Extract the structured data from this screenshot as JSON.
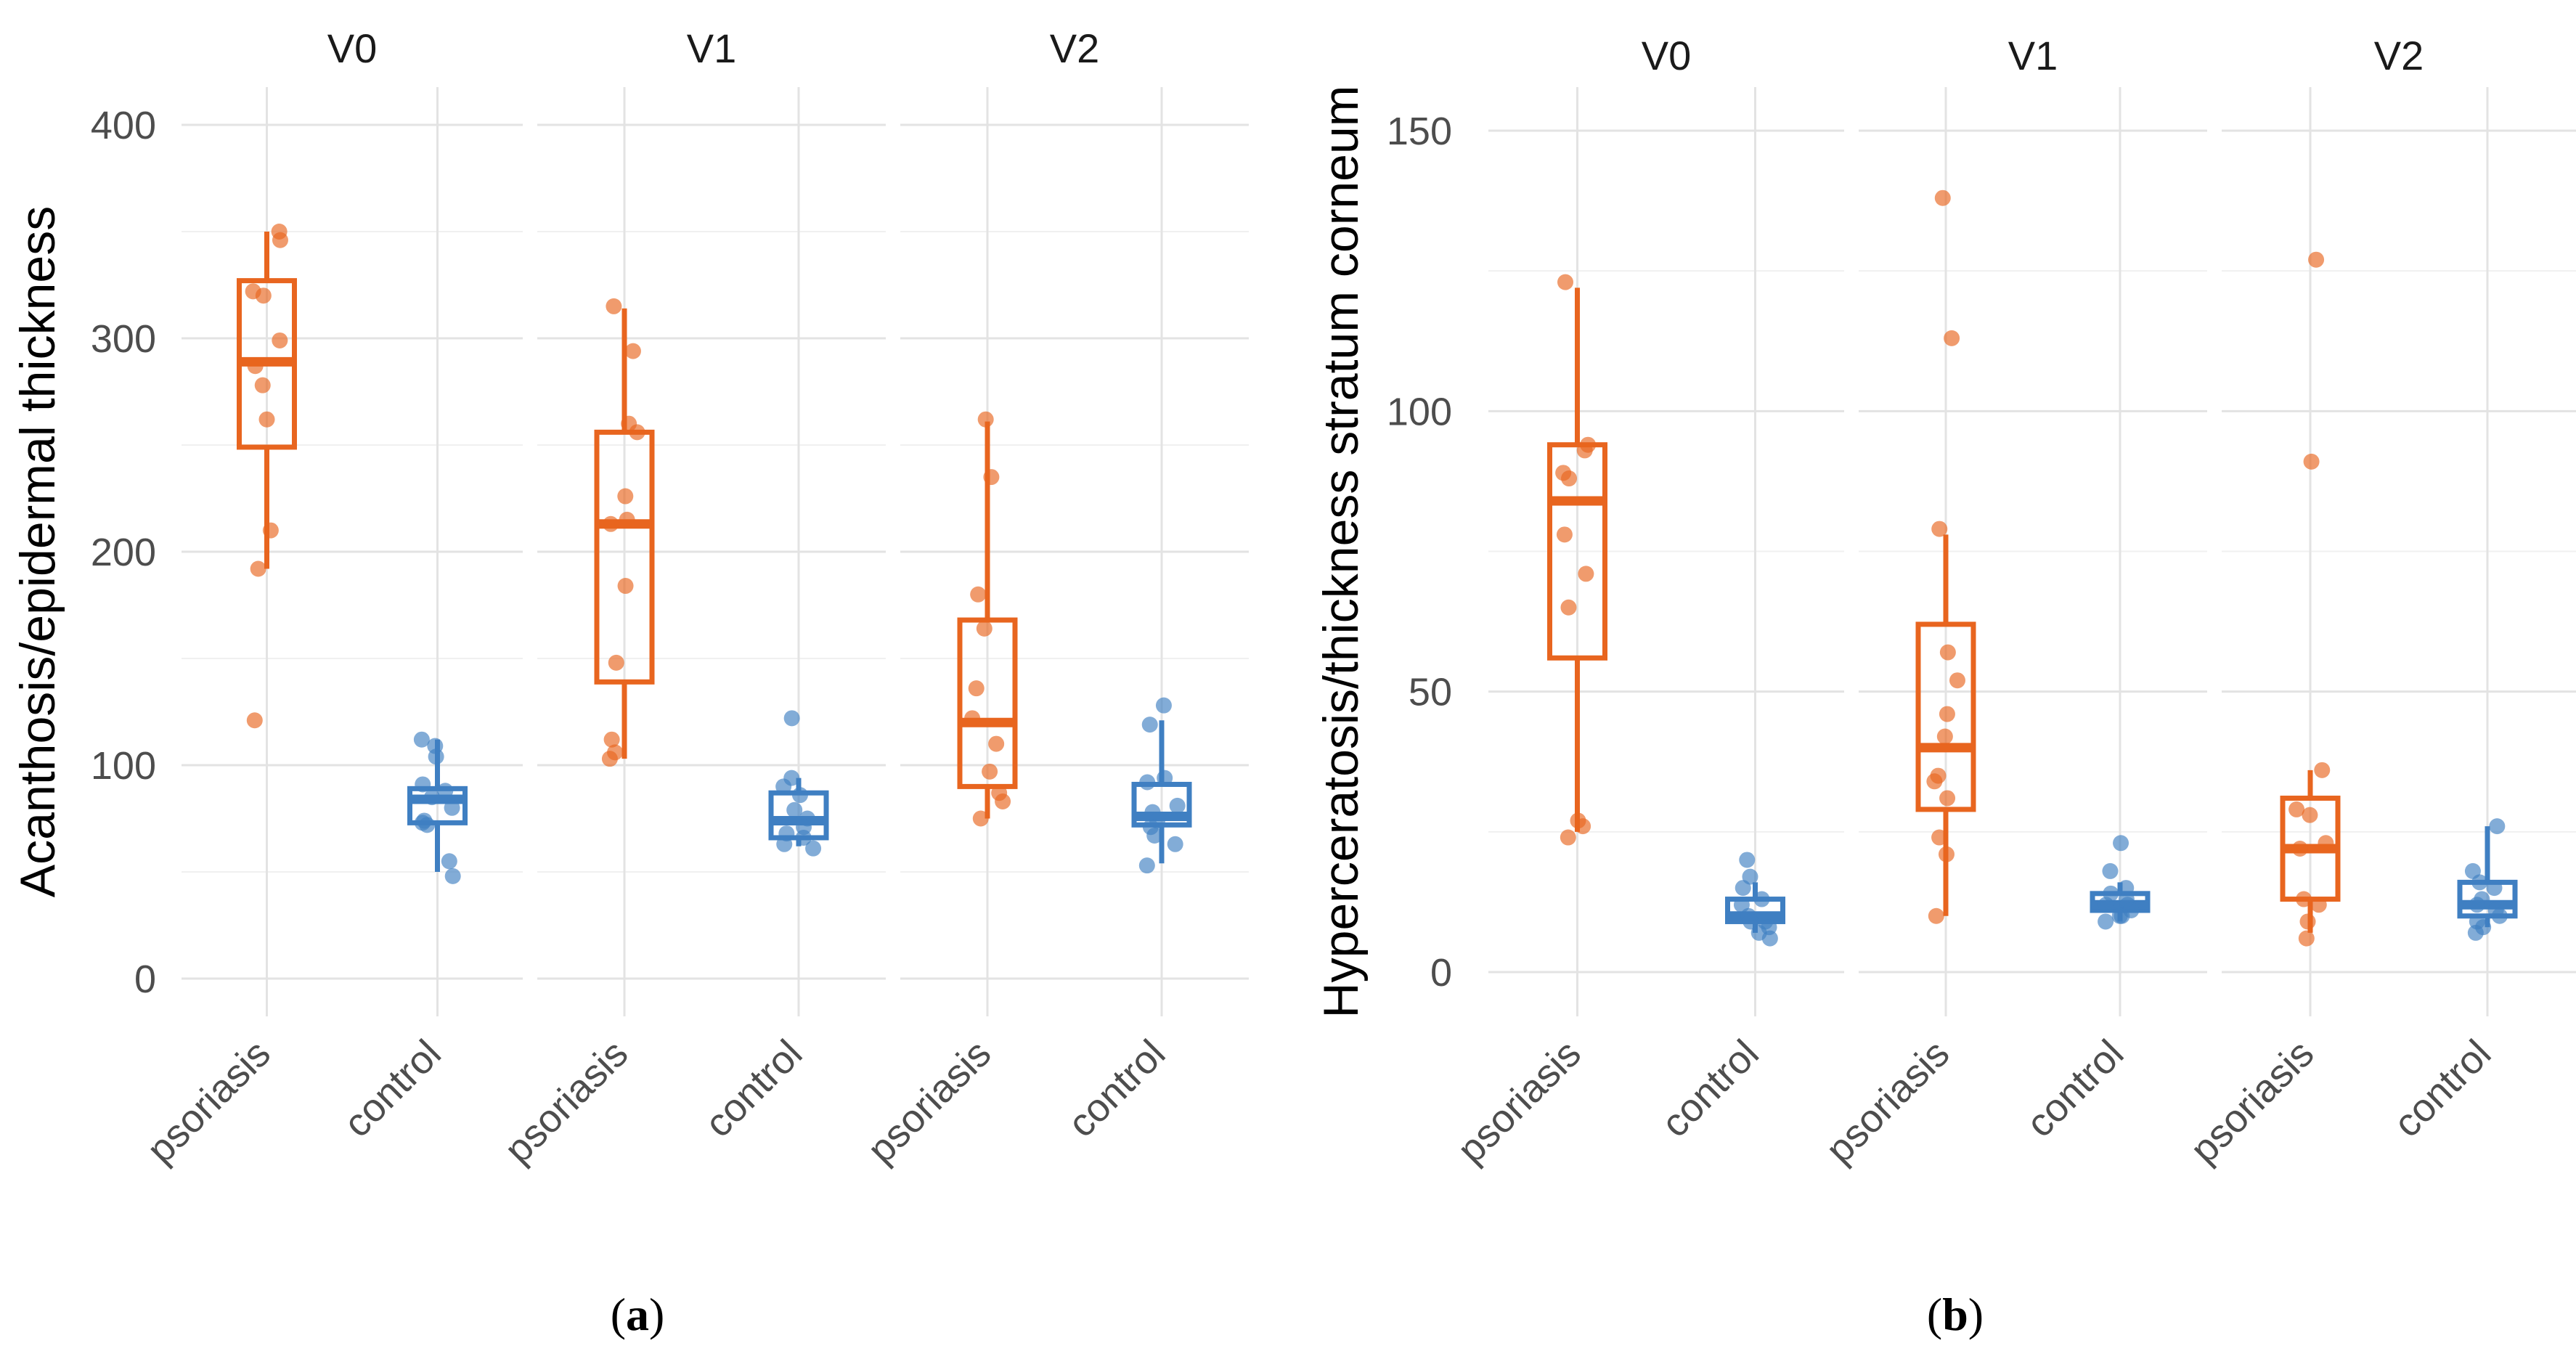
{
  "chart_data": [
    {
      "type": "boxplot",
      "panel_label": "a",
      "ylabel": "Acanthosis/epidermal thickness",
      "xlabel": "",
      "ylim": [
        -12,
        415
      ],
      "yticks": [
        0,
        100,
        200,
        300,
        400
      ],
      "grid": true,
      "categories": [
        "psoriasis",
        "control"
      ],
      "colors": {
        "psoriasis": "#E8651F",
        "control": "#3F7FC2"
      },
      "facets": [
        {
          "label": "V0",
          "groups": [
            {
              "name": "psoriasis",
              "q1": 249,
              "median": 289,
              "q3": 327,
              "whisker_low": 192,
              "whisker_high": 350,
              "points": [
                350,
                346,
                322,
                320,
                299,
                287,
                278,
                262,
                210,
                192,
                121
              ]
            },
            {
              "name": "control",
              "q1": 73,
              "median": 84,
              "q3": 89,
              "whisker_low": 50,
              "whisker_high": 112,
              "points": [
                112,
                109,
                104,
                91,
                88,
                85,
                80,
                74,
                73,
                72,
                55,
                48
              ]
            }
          ]
        },
        {
          "label": "V1",
          "groups": [
            {
              "name": "psoriasis",
              "q1": 139,
              "median": 213,
              "q3": 256,
              "whisker_low": 103,
              "whisker_high": 314,
              "points": [
                315,
                294,
                260,
                256,
                226,
                215,
                213,
                184,
                148,
                112,
                106,
                103
              ]
            },
            {
              "name": "control",
              "q1": 66,
              "median": 74,
              "q3": 87,
              "whisker_low": 62,
              "whisker_high": 94,
              "points": [
                122,
                94,
                90,
                86,
                79,
                75,
                71,
                68,
                66,
                63,
                61
              ]
            }
          ]
        },
        {
          "label": "V2",
          "groups": [
            {
              "name": "psoriasis",
              "q1": 90,
              "median": 120,
              "q3": 168,
              "whisker_low": 75,
              "whisker_high": 261,
              "points": [
                262,
                235,
                180,
                164,
                136,
                122,
                110,
                97,
                87,
                83,
                75
              ]
            },
            {
              "name": "control",
              "q1": 72,
              "median": 76,
              "q3": 91,
              "whisker_low": 54,
              "whisker_high": 121,
              "points": [
                128,
                119,
                94,
                92,
                81,
                78,
                74,
                71,
                67,
                63,
                53
              ]
            }
          ]
        }
      ]
    },
    {
      "type": "boxplot",
      "panel_label": "b",
      "ylabel": "Hyperceratosis/thickness stratum corneum",
      "xlabel": "",
      "ylim": [
        -4,
        156
      ],
      "yticks": [
        0,
        50,
        100,
        150
      ],
      "grid": true,
      "categories": [
        "psoriasis",
        "control"
      ],
      "colors": {
        "psoriasis": "#E8651F",
        "control": "#3F7FC2"
      },
      "facets": [
        {
          "label": "V0",
          "groups": [
            {
              "name": "psoriasis",
              "q1": 56,
              "median": 84,
              "q3": 94,
              "whisker_low": 25,
              "whisker_high": 122,
              "points": [
                123,
                94,
                93,
                89,
                88,
                78,
                71,
                65,
                27,
                26,
                24
              ]
            },
            {
              "name": "control",
              "q1": 9,
              "median": 10,
              "q3": 13,
              "whisker_low": 7,
              "whisker_high": 16,
              "points": [
                20,
                17,
                15,
                13,
                12,
                10,
                9,
                9,
                8,
                7,
                6
              ]
            }
          ]
        },
        {
          "label": "V1",
          "groups": [
            {
              "name": "psoriasis",
              "q1": 29,
              "median": 40,
              "q3": 62,
              "whisker_low": 10,
              "whisker_high": 78,
              "points": [
                138,
                113,
                79,
                57,
                52,
                46,
                42,
                35,
                34,
                31,
                24,
                21,
                10
              ]
            },
            {
              "name": "control",
              "q1": 11,
              "median": 12,
              "q3": 14,
              "whisker_low": 9,
              "whisker_high": 16,
              "points": [
                23,
                18,
                15,
                14,
                13,
                12,
                12,
                11,
                10,
                10,
                9
              ]
            }
          ]
        },
        {
          "label": "V2",
          "groups": [
            {
              "name": "psoriasis",
              "q1": 13,
              "median": 22,
              "q3": 31,
              "whisker_low": 7,
              "whisker_high": 36,
              "points": [
                127,
                91,
                36,
                29,
                28,
                23,
                22,
                13,
                12,
                9,
                6
              ]
            },
            {
              "name": "control",
              "q1": 10,
              "median": 12,
              "q3": 16,
              "whisker_low": 8,
              "whisker_high": 26,
              "points": [
                26,
                18,
                16,
                15,
                13,
                12,
                11,
                10,
                9,
                8,
                7
              ]
            }
          ]
        }
      ]
    }
  ]
}
